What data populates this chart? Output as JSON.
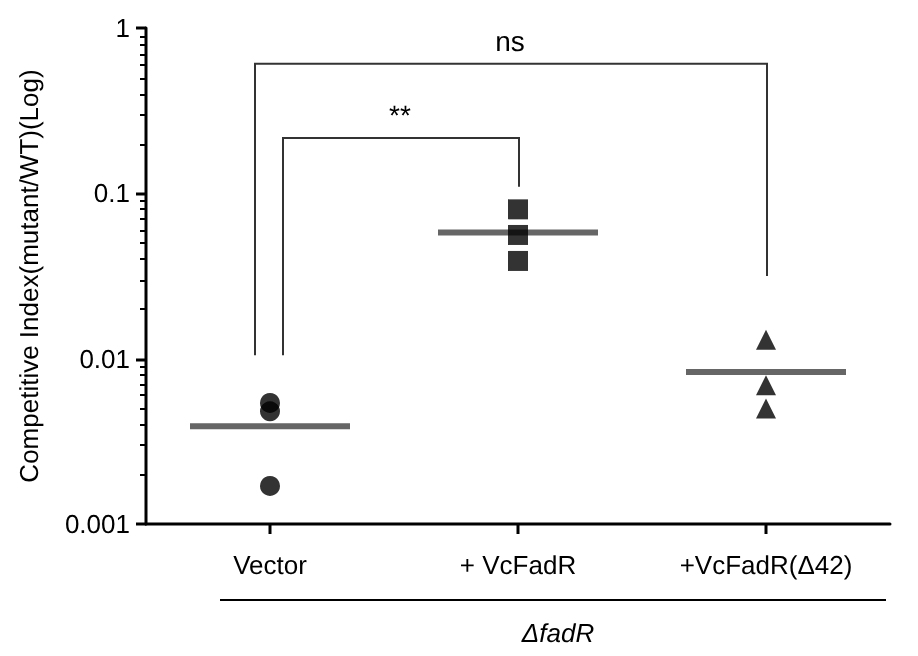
{
  "chart_data": {
    "type": "scatter",
    "ylabel": "Competitive Index(mutant/WT)(Log)",
    "xlabel": "ΔfadR",
    "categories": [
      "Vector",
      "+ VcFadR",
      "+VcFadR(Δ42)"
    ],
    "series": [
      {
        "marker": "circle",
        "color": "#000000",
        "x": [
          "Vector",
          "Vector",
          "Vector"
        ],
        "values": [
          0.0054,
          0.0048,
          0.0017
        ]
      },
      {
        "marker": "square",
        "color": "#000000",
        "x": [
          "+ VcFadR",
          "+ VcFadR",
          "+ VcFadR"
        ],
        "values": [
          0.08,
          0.056,
          0.039
        ]
      },
      {
        "marker": "triangle",
        "color": "#000000",
        "x": [
          "+VcFadR(Δ42)",
          "+VcFadR(Δ42)",
          "+VcFadR(Δ42)"
        ],
        "values": [
          0.013,
          0.0069,
          0.005
        ]
      },
      {
        "type": "box",
        "color": "#666666",
        "boxes": [
          {
            "low": 0.0039,
            "q1": 0.0039,
            "median": 0.0039,
            "q3": 0.0039,
            "high": 0.0039
          },
          {
            "low": 0.058,
            "q1": 0.058,
            "median": 0.058,
            "q3": 0.058,
            "high": 0.058
          },
          {
            "low": 0.0083,
            "q1": 0.0083,
            "median": 0.0083,
            "q3": 0.0083,
            "high": 0.0083
          }
        ]
      }
    ],
    "ylim": [
      0.001,
      1
    ],
    "yticks": [
      0.001,
      0.01,
      0.1,
      1
    ],
    "log": "y",
    "grid": false,
    "annotations": [
      "**",
      "ns"
    ]
  }
}
